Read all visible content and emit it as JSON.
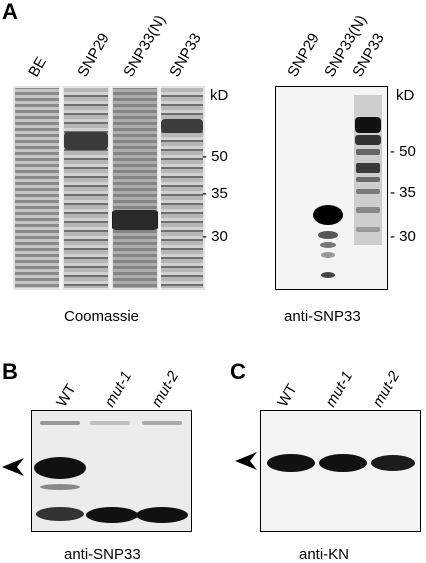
{
  "panel_a": {
    "letter": "A",
    "gel_lanes": [
      "BE",
      "SNP29",
      "SNP33(N)",
      "SNP33"
    ],
    "blot_lanes": [
      "SNP29",
      "SNP33(N)",
      "SNP33"
    ],
    "kd_label": "kD",
    "markers": [
      "- 50",
      "- 35",
      "- 30"
    ],
    "gel_caption": "Coomassie",
    "blot_caption": "anti-SNP33"
  },
  "panel_b": {
    "letter": "B",
    "lanes": [
      "WT",
      "mut-1",
      "mut-2"
    ],
    "caption": "anti-SNP33"
  },
  "panel_c": {
    "letter": "C",
    "lanes": [
      "WT",
      "mut-1",
      "mut-2"
    ],
    "caption": "anti-KN"
  }
}
